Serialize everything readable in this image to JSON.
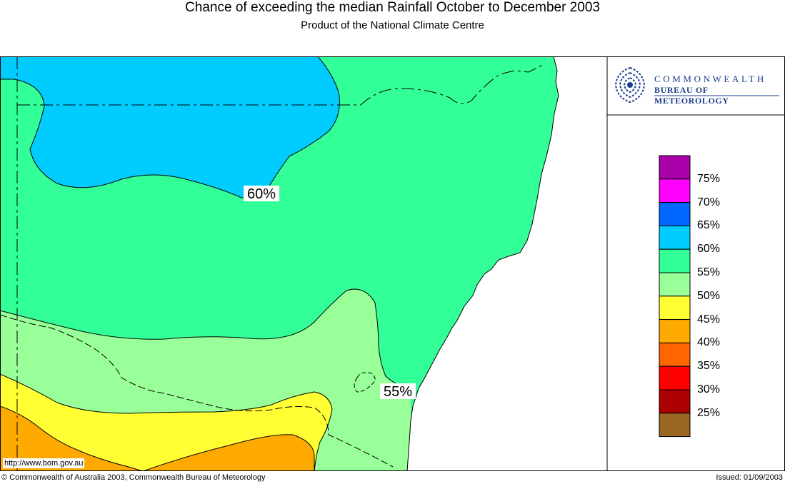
{
  "title": "Chance of exceeding the median Rainfall October to December 2003",
  "subtitle": "Product of the National Climate Centre",
  "logo": {
    "line1": "COMMONWEALTH",
    "line2": "BUREAU OF METEOROLOGY",
    "icon": "bom-swirl-logo"
  },
  "contour_labels": {
    "upper": "60%",
    "lower": "55%"
  },
  "url": "http://www.bom.gov.au",
  "footer": {
    "copyright": "© Commonwealth of Australia 2003, Commonwealth Bureau of Meteorology",
    "issued": "Issued: 01/09/2003"
  },
  "legend": {
    "labels": [
      "75%",
      "70%",
      "65%",
      "60%",
      "55%",
      "50%",
      "45%",
      "40%",
      "35%",
      "30%",
      "25%"
    ],
    "colors": [
      "#aa00aa",
      "#ff00ff",
      "#0066ff",
      "#00ccff",
      "#33ff99",
      "#99ff99",
      "#ffff33",
      "#ffaa00",
      "#ff6600",
      "#ff0000",
      "#aa0000",
      "#996622"
    ]
  },
  "colors": {
    "band_60_65": "#00ccff",
    "band_55_60": "#33ff99",
    "band_50_55": "#99ff99",
    "band_45_50": "#ffff33",
    "band_40_45": "#ffaa00",
    "ocean": "#ffffff"
  }
}
